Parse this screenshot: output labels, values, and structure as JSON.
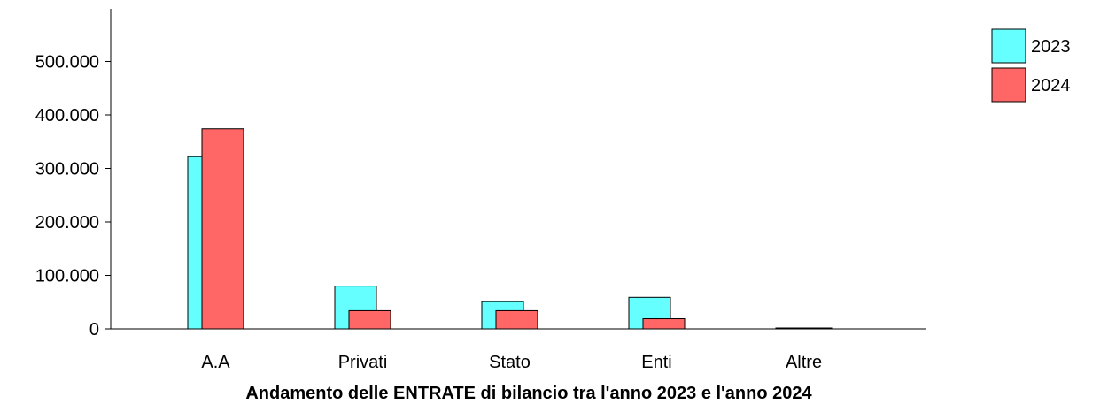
{
  "chart_data": {
    "type": "bar",
    "title": "Andamento delle ENTRATE di bilancio tra l'anno 2023 e l'anno 2024",
    "xlabel": "",
    "ylabel": "",
    "categories": [
      "A.A",
      "Privati",
      "Stato",
      "Enti",
      "Altre"
    ],
    "series": [
      {
        "name": "2023",
        "values": [
          322000,
          80000,
          51000,
          59000,
          1000
        ],
        "color": "#66ffff"
      },
      {
        "name": "2024",
        "values": [
          374000,
          34000,
          34000,
          19000,
          500
        ],
        "color": "#ff6666"
      }
    ],
    "ylim": [
      0,
      550000
    ],
    "yticks": [
      {
        "value": 0,
        "label": "0"
      },
      {
        "value": 100000,
        "label": "100.000"
      },
      {
        "value": 200000,
        "label": "200.000"
      },
      {
        "value": 300000,
        "label": "300.000"
      },
      {
        "value": 400000,
        "label": "400.000"
      },
      {
        "value": 500000,
        "label": "500.000"
      }
    ],
    "grid": false,
    "legend_position": "top-right",
    "style": "3d-offset-bars"
  }
}
